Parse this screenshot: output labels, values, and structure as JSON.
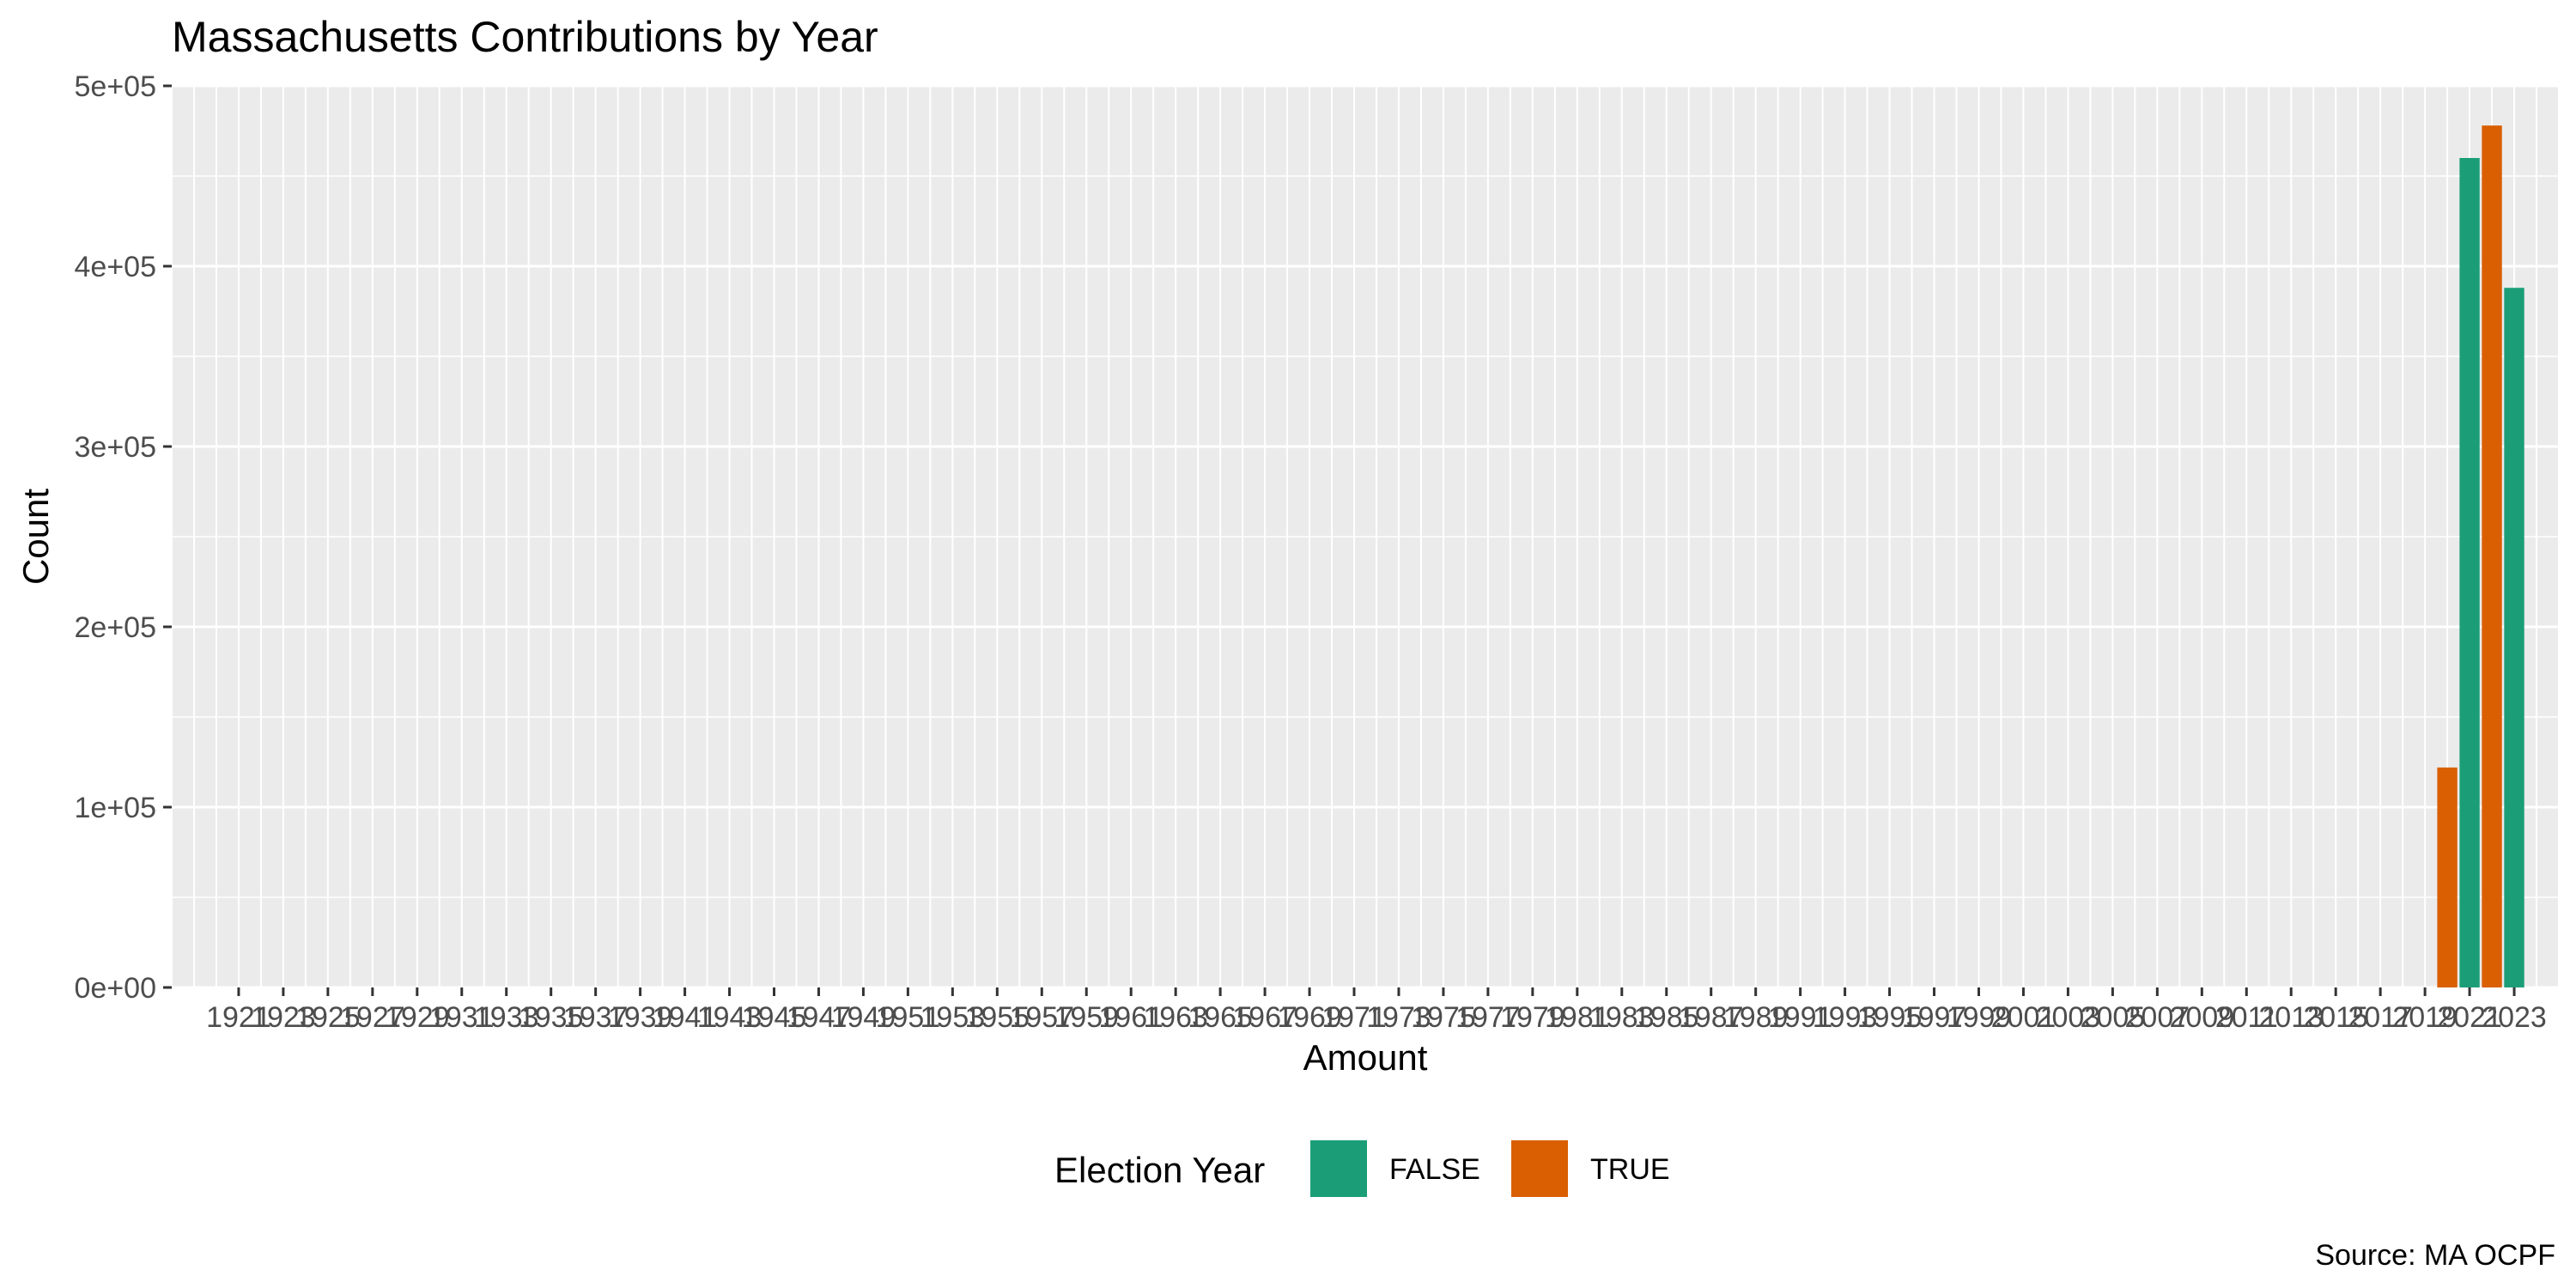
{
  "chart_data": {
    "type": "bar",
    "title": "Massachusetts Contributions by Year",
    "xlabel": "Amount",
    "ylabel": "Count",
    "caption": "Source: MA OCPF",
    "ylim": [
      0,
      500000
    ],
    "y_ticks": [
      {
        "value": 0,
        "label": "0e+00"
      },
      {
        "value": 100000,
        "label": "1e+05"
      },
      {
        "value": 200000,
        "label": "2e+05"
      },
      {
        "value": 300000,
        "label": "3e+05"
      },
      {
        "value": 400000,
        "label": "4e+05"
      },
      {
        "value": 500000,
        "label": "5e+05"
      }
    ],
    "x_range": [
      1918,
      2025
    ],
    "x_tick_labels": [
      1921,
      1923,
      1925,
      1927,
      1929,
      1931,
      1933,
      1935,
      1937,
      1939,
      1941,
      1943,
      1945,
      1947,
      1949,
      1951,
      1953,
      1955,
      1957,
      1959,
      1961,
      1963,
      1965,
      1967,
      1969,
      1971,
      1973,
      1975,
      1977,
      1979,
      1981,
      1983,
      1985,
      1987,
      1989,
      1991,
      1993,
      1995,
      1997,
      1999,
      2001,
      2003,
      2005,
      2007,
      2009,
      2011,
      2013,
      2015,
      2017,
      2019,
      2021,
      2023
    ],
    "legend": {
      "title": "Election Year",
      "position": "bottom",
      "entries": [
        {
          "label": "FALSE",
          "color": "#1b9e77"
        },
        {
          "label": "TRUE",
          "color": "#d95f02"
        }
      ]
    },
    "series": [
      {
        "name": "FALSE",
        "color": "#1b9e77",
        "points": [
          {
            "x": 2021,
            "y": 460000
          },
          {
            "x": 2023,
            "y": 388000
          }
        ]
      },
      {
        "name": "TRUE",
        "color": "#d95f02",
        "points": [
          {
            "x": 2020,
            "y": 122000
          },
          {
            "x": 2022,
            "y": 478000
          }
        ]
      }
    ],
    "grid": true,
    "panel_color": "#ebebeb"
  }
}
